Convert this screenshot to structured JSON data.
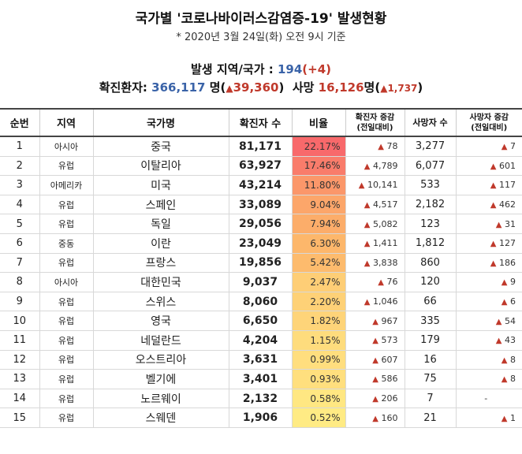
{
  "header": {
    "title": "국가별 '코로나바이러스감염증-19' 발생현황",
    "date": "* 2020년 3월 24일(화) 오전 9시 기준",
    "regions_label": "발생 지역/국가 :",
    "regions_value": "194",
    "regions_delta": "(+4)",
    "confirmed_label": "확진환자:",
    "confirmed_value": "366,117",
    "confirmed_unit": "명",
    "confirmed_delta": "39,360",
    "death_label": "사망",
    "death_value": "16,126",
    "death_unit": "명",
    "death_delta": "1,737",
    "up_symbol": "▲"
  },
  "columns": {
    "rank": "순번",
    "region": "지역",
    "country": "국가명",
    "confirmed": "확진자 수",
    "ratio": "비율",
    "confirmed_inc_1": "확진자 증감",
    "confirmed_inc_2": "(전일대비)",
    "deaths": "사망자 수",
    "deaths_inc_1": "사망자 증감",
    "deaths_inc_2": "(전일대비)"
  },
  "rows": [
    {
      "rank": "1",
      "region": "아시아",
      "country": "중국",
      "confirmed": "81,171",
      "ratio": "22.17%",
      "ratio_value": 22.17,
      "confirmed_inc": "78",
      "deaths": "3,277",
      "deaths_inc": "7"
    },
    {
      "rank": "2",
      "region": "유럽",
      "country": "이탈리아",
      "confirmed": "63,927",
      "ratio": "17.46%",
      "ratio_value": 17.46,
      "confirmed_inc": "4,789",
      "deaths": "6,077",
      "deaths_inc": "601"
    },
    {
      "rank": "3",
      "region": "아메리카",
      "country": "미국",
      "confirmed": "43,214",
      "ratio": "11.80%",
      "ratio_value": 11.8,
      "confirmed_inc": "10,141",
      "deaths": "533",
      "deaths_inc": "117"
    },
    {
      "rank": "4",
      "region": "유럽",
      "country": "스페인",
      "confirmed": "33,089",
      "ratio": "9.04%",
      "ratio_value": 9.04,
      "confirmed_inc": "4,517",
      "deaths": "2,182",
      "deaths_inc": "462"
    },
    {
      "rank": "5",
      "region": "유럽",
      "country": "독일",
      "confirmed": "29,056",
      "ratio": "7.94%",
      "ratio_value": 7.94,
      "confirmed_inc": "5,082",
      "deaths": "123",
      "deaths_inc": "31"
    },
    {
      "rank": "6",
      "region": "중동",
      "country": "이란",
      "confirmed": "23,049",
      "ratio": "6.30%",
      "ratio_value": 6.3,
      "confirmed_inc": "1,411",
      "deaths": "1,812",
      "deaths_inc": "127"
    },
    {
      "rank": "7",
      "region": "유럽",
      "country": "프랑스",
      "confirmed": "19,856",
      "ratio": "5.42%",
      "ratio_value": 5.42,
      "confirmed_inc": "3,838",
      "deaths": "860",
      "deaths_inc": "186"
    },
    {
      "rank": "8",
      "region": "아시아",
      "country": "대한민국",
      "confirmed": "9,037",
      "ratio": "2.47%",
      "ratio_value": 2.47,
      "confirmed_inc": "76",
      "deaths": "120",
      "deaths_inc": "9"
    },
    {
      "rank": "9",
      "region": "유럽",
      "country": "스위스",
      "confirmed": "8,060",
      "ratio": "2.20%",
      "ratio_value": 2.2,
      "confirmed_inc": "1,046",
      "deaths": "66",
      "deaths_inc": "6"
    },
    {
      "rank": "10",
      "region": "유럽",
      "country": "영국",
      "confirmed": "6,650",
      "ratio": "1.82%",
      "ratio_value": 1.82,
      "confirmed_inc": "967",
      "deaths": "335",
      "deaths_inc": "54"
    },
    {
      "rank": "11",
      "region": "유럽",
      "country": "네덜란드",
      "confirmed": "4,204",
      "ratio": "1.15%",
      "ratio_value": 1.15,
      "confirmed_inc": "573",
      "deaths": "179",
      "deaths_inc": "43"
    },
    {
      "rank": "12",
      "region": "유럽",
      "country": "오스트리아",
      "confirmed": "3,631",
      "ratio": "0.99%",
      "ratio_value": 0.99,
      "confirmed_inc": "607",
      "deaths": "16",
      "deaths_inc": "8"
    },
    {
      "rank": "13",
      "region": "유럽",
      "country": "벨기에",
      "confirmed": "3,401",
      "ratio": "0.93%",
      "ratio_value": 0.93,
      "confirmed_inc": "586",
      "deaths": "75",
      "deaths_inc": "8"
    },
    {
      "rank": "14",
      "region": "유럽",
      "country": "노르웨이",
      "confirmed": "2,132",
      "ratio": "0.58%",
      "ratio_value": 0.58,
      "confirmed_inc": "206",
      "deaths": "7",
      "deaths_inc": "-"
    },
    {
      "rank": "15",
      "region": "유럽",
      "country": "스웨덴",
      "confirmed": "1,906",
      "ratio": "0.52%",
      "ratio_value": 0.52,
      "confirmed_inc": "160",
      "deaths": "21",
      "deaths_inc": "1"
    }
  ],
  "colors": {
    "ratio_high": "#f8696b",
    "ratio_mid": "#fdb56a",
    "ratio_low": "#ffeb84",
    "triangle": "#c0392b",
    "accent_blue": "#3a63a8"
  }
}
